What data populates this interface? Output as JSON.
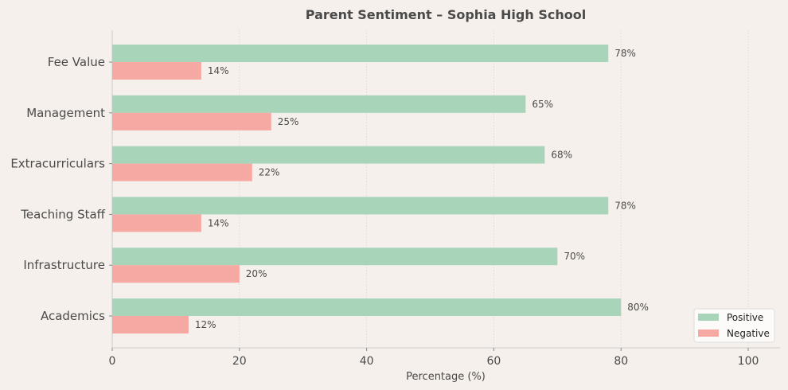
{
  "chart_data": {
    "type": "bar",
    "orientation": "horizontal",
    "title": "Parent Sentiment – Sophia High School",
    "xlabel": "Percentage (%)",
    "ylabel": "",
    "categories": [
      "Academics",
      "Infrastructure",
      "Teaching Staff",
      "Extracurriculars",
      "Management",
      "Fee Value"
    ],
    "series": [
      {
        "name": "Positive",
        "color": "#a8d5ba",
        "values": [
          80,
          70,
          78,
          68,
          65,
          78
        ]
      },
      {
        "name": "Negative",
        "color": "#f6a8a3",
        "values": [
          12,
          20,
          14,
          22,
          25,
          14
        ]
      }
    ],
    "value_suffix": "%",
    "xlim": [
      0,
      105
    ],
    "xticks": [
      0,
      20,
      40,
      60,
      80,
      100
    ],
    "grid": "x dotted",
    "legend": "bottom-right",
    "colors": {
      "background": "#f5f0eb",
      "text": "#4a4a4a"
    }
  }
}
